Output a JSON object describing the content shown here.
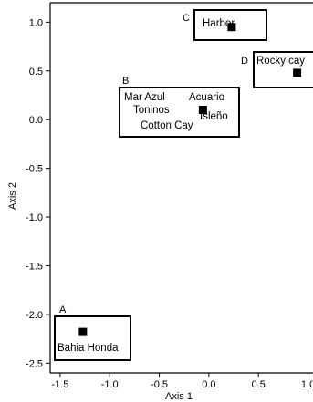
{
  "chart_data": {
    "type": "scatter",
    "title": "",
    "xlabel": "Axis 1",
    "ylabel": "Axis 2",
    "xlim": [
      -1.6,
      1.05
    ],
    "ylim": [
      -2.6,
      1.2
    ],
    "xticks": [
      -1.5,
      -1.0,
      -0.5,
      0.0,
      0.5,
      1.0
    ],
    "xtick_labels": [
      "-1.5",
      "-1.0",
      "-0.5",
      "0.0",
      "0.5",
      "1.0"
    ],
    "yticks": [
      -2.5,
      -2.0,
      -1.5,
      -1.0,
      -0.5,
      0.0,
      0.5,
      1.0
    ],
    "ytick_labels": [
      "-2.5",
      "-2.0",
      "-1.5",
      "-1.0",
      "-0.5",
      "0.0",
      "0.5",
      "1.0"
    ],
    "grid": false,
    "points": [
      {
        "group": "A",
        "x": -1.27,
        "y": -2.18
      },
      {
        "group": "B",
        "x": -0.06,
        "y": 0.1
      },
      {
        "group": "C",
        "x": 0.23,
        "y": 0.95
      },
      {
        "group": "D",
        "x": 0.89,
        "y": 0.48
      }
    ],
    "groups": [
      {
        "id": "A",
        "sites": [
          "Bahia Honda"
        ]
      },
      {
        "id": "B",
        "sites": [
          "Mar Azul",
          "Acuario",
          "Toninos",
          "Isleño",
          "Cotton Cay"
        ]
      },
      {
        "id": "C",
        "sites": [
          "Harbor"
        ]
      },
      {
        "id": "D",
        "sites": [
          "Rocky cay"
        ]
      }
    ]
  }
}
